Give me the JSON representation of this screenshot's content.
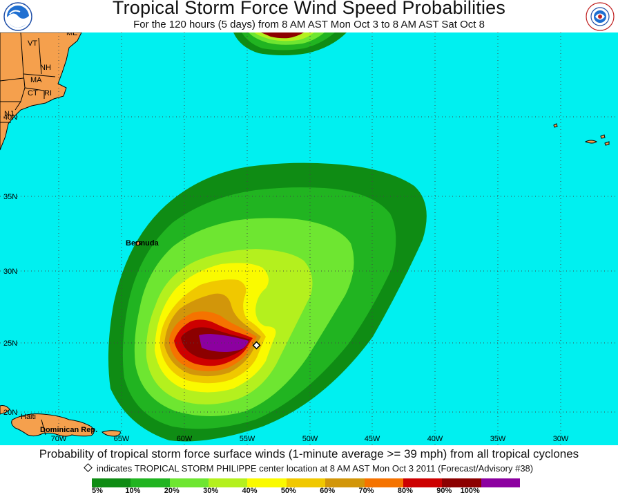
{
  "header": {
    "title": "Tropical Storm Force Wind Speed Probabilities",
    "subtitle": "For the 120 hours (5 days) from 8 AM AST Mon Oct 3 to 8 AM AST Sat Oct 8"
  },
  "logos": {
    "left": "NOAA",
    "right": "NATIONAL WEATHER SERVICE"
  },
  "map": {
    "colors": {
      "ocean": "#00f0f0",
      "land": "#f5a04d",
      "p5": "#0f8c14",
      "p10": "#21b421",
      "p20": "#6ee631",
      "p30": "#b4f01e",
      "p40": "#fafa00",
      "p50": "#f0c800",
      "p60": "#d2960a",
      "p70": "#f57300",
      "p80": "#cd0000",
      "p90": "#8c0000",
      "p100": "#8c00a0"
    },
    "lat_labels": [
      "40N",
      "35N",
      "30N",
      "25N",
      "20N"
    ],
    "lon_labels": [
      "70W",
      "65W",
      "60W",
      "55W",
      "50W",
      "45W",
      "40W",
      "35W",
      "30W"
    ],
    "place_labels": {
      "vt": "VT",
      "me": "ME",
      "nh": "NH",
      "ma": "MA",
      "ct": "CT",
      "ri": "RI",
      "nj": "NJ",
      "bermuda": "Bermuda",
      "haiti": "Haiti",
      "dominican": "Dominican Rep."
    }
  },
  "footer": {
    "caption": "Probability of tropical storm force surface winds (1-minute average >= 39 mph) from all tropical cyclones",
    "note": "indicates TROPICAL STORM PHILIPPE center location at 8 AM AST Mon Oct 3 2011 (Forecast/Advisory #38)"
  },
  "legend": {
    "labels": [
      "5%",
      "10%",
      "20%",
      "30%",
      "40%",
      "50%",
      "60%",
      "70%",
      "80%",
      "90%",
      "100%"
    ],
    "colors": [
      "#0f8c14",
      "#21b421",
      "#6ee631",
      "#b4f01e",
      "#fafa00",
      "#f0c800",
      "#d2960a",
      "#f57300",
      "#cd0000",
      "#8c0000",
      "#8c00a0"
    ]
  }
}
